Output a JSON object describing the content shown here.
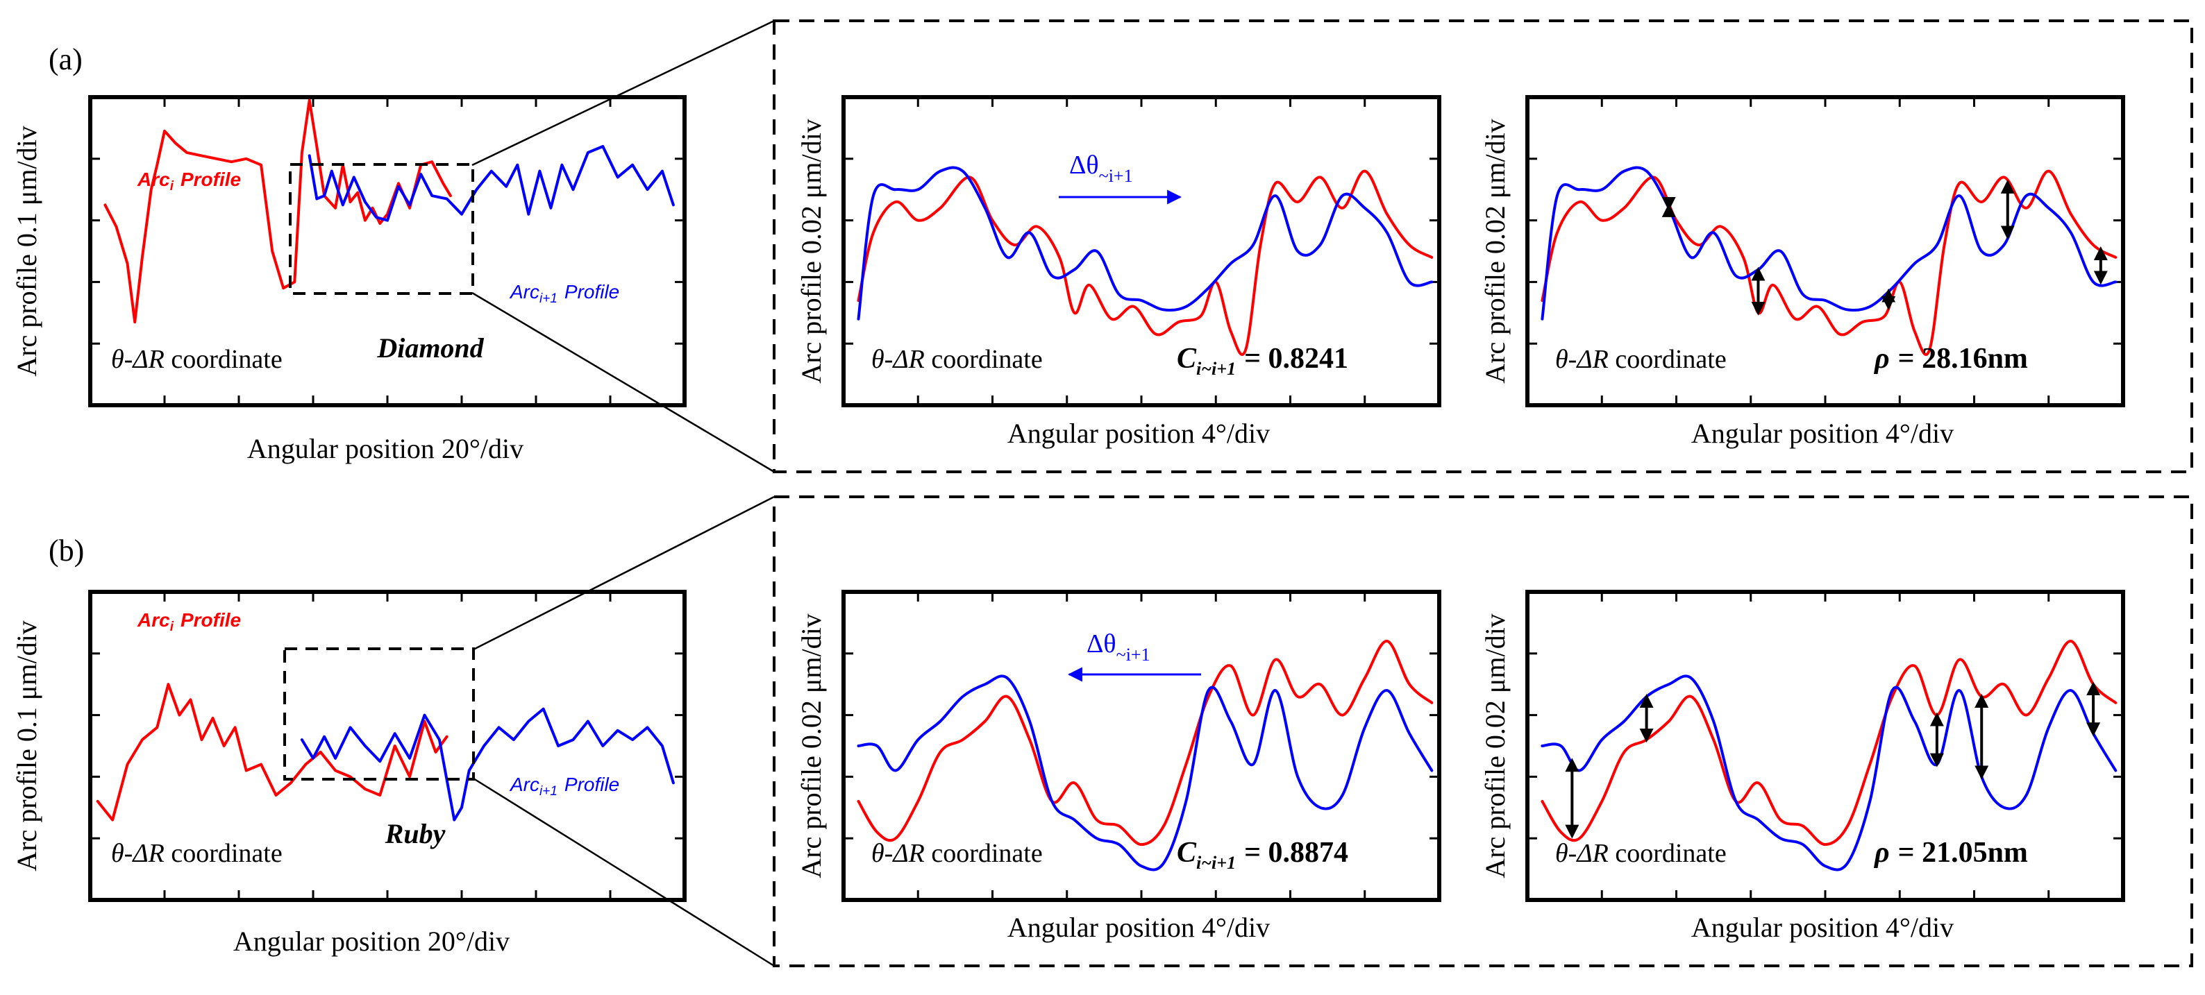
{
  "figure": {
    "panel_a_label": "(a)",
    "panel_b_label": "(b)"
  },
  "colors": {
    "arc_i": "#ff0000",
    "arc_i1": "#0000ff",
    "frame": "#000000"
  },
  "panels": {
    "a": {
      "overview": {
        "ylabel": "Arc profile 0.1 μm/div",
        "xlabel": "Angular position 20°/div",
        "coord": "θ-ΔR coordinate",
        "material": "Diamond",
        "arc_i_label": "Arc",
        "arc_i_sub": "i",
        "arc_i_suffix": "Profile",
        "arc_i1_label": "Arc",
        "arc_i1_sub": "i+1",
        "arc_i1_suffix": "Profile"
      },
      "zoom_left": {
        "ylabel": "Arc profile 0.02 μm/div",
        "xlabel": "Angular position 4°/div",
        "coord": "θ-ΔR coordinate",
        "shift_label": "Δθ",
        "shift_sub": "~i+1",
        "stat_symbol": "C",
        "stat_sub": "i~i+1",
        "stat_value": "= 0.8241"
      },
      "zoom_right": {
        "ylabel": "Arc profile 0.02 μm/div",
        "xlabel": "Angular position 4°/div",
        "coord": "θ-ΔR coordinate",
        "stat_symbol": "ρ",
        "stat_value": "= 28.16nm"
      }
    },
    "b": {
      "overview": {
        "ylabel": "Arc profile 0.1 μm/div",
        "xlabel": "Angular position 20°/div",
        "coord": "θ-ΔR coordinate",
        "material": "Ruby",
        "arc_i_label": "Arc",
        "arc_i_sub": "i",
        "arc_i_suffix": "Profile",
        "arc_i1_label": "Arc",
        "arc_i1_sub": "i+1",
        "arc_i1_suffix": "Profile"
      },
      "zoom_left": {
        "ylabel": "Arc profile 0.02 μm/div",
        "xlabel": "Angular position 4°/div",
        "coord": "θ-ΔR coordinate",
        "shift_label": "Δθ",
        "shift_sub": "~i+1",
        "stat_symbol": "C",
        "stat_sub": "i~i+1",
        "stat_value": "= 0.8874"
      },
      "zoom_right": {
        "ylabel": "Arc profile 0.02 μm/div",
        "xlabel": "Angular position 4°/div",
        "coord": "θ-ΔR coordinate",
        "stat_symbol": "ρ",
        "stat_value": "= 21.05nm"
      }
    }
  },
  "chart_data": [
    {
      "type": "line",
      "id": "a_overview",
      "title": "Diamond",
      "xlabel": "Angular position 20°/div",
      "ylabel": "Arc profile 0.1 μm/div",
      "xlim": [
        0,
        8
      ],
      "ylim": [
        0,
        5
      ],
      "series": [
        {
          "name": "Arc_i Profile",
          "color": "#ff0000",
          "x": [
            0.2,
            0.35,
            0.5,
            0.6,
            0.7,
            0.82,
            0.9,
            1.0,
            1.15,
            1.3,
            1.5,
            1.7,
            1.9,
            2.1,
            2.3,
            2.45,
            2.6,
            2.75,
            2.85,
            2.95,
            3.05,
            3.15,
            3.3,
            3.4,
            3.5,
            3.6,
            3.7,
            3.8,
            3.9,
            4.0,
            4.15,
            4.3,
            4.45,
            4.6,
            4.75,
            4.85
          ],
          "y": [
            3.25,
            2.9,
            2.3,
            1.35,
            2.4,
            3.5,
            3.9,
            4.45,
            4.25,
            4.1,
            4.05,
            4.0,
            3.95,
            4.0,
            3.9,
            2.5,
            1.9,
            2.0,
            4.1,
            4.95,
            4.2,
            3.4,
            3.2,
            3.9,
            3.3,
            3.45,
            3.0,
            3.2,
            2.95,
            3.1,
            3.6,
            3.2,
            3.9,
            3.95,
            3.6,
            3.4
          ]
        },
        {
          "name": "Arc_i+1 Profile",
          "color": "#0000ff",
          "x": [
            2.95,
            3.05,
            3.15,
            3.25,
            3.4,
            3.55,
            3.7,
            3.85,
            4.0,
            4.15,
            4.3,
            4.45,
            4.6,
            4.8,
            5.0,
            5.2,
            5.4,
            5.6,
            5.75,
            5.9,
            6.05,
            6.2,
            6.35,
            6.5,
            6.7,
            6.9,
            7.1,
            7.3,
            7.5,
            7.7,
            7.85
          ],
          "y": [
            4.05,
            3.35,
            3.4,
            3.8,
            3.25,
            3.7,
            3.3,
            3.05,
            3.0,
            3.55,
            3.25,
            3.75,
            3.4,
            3.35,
            3.1,
            3.5,
            3.8,
            3.55,
            3.9,
            3.1,
            3.8,
            3.2,
            3.9,
            3.5,
            4.1,
            4.2,
            3.7,
            3.9,
            3.5,
            3.8,
            3.25
          ]
        }
      ],
      "annotations": [
        "Arc_i Profile",
        "Arc_i+1 Profile",
        "θ-ΔR coordinate",
        "Diamond"
      ]
    },
    {
      "type": "line",
      "id": "a_zoom_left",
      "xlabel": "Angular position 4°/div",
      "ylabel": "Arc profile 0.02 μm/div",
      "xlim": [
        0,
        8
      ],
      "ylim": [
        0,
        5
      ],
      "series": [
        {
          "name": "Arc_i",
          "color": "#ff0000",
          "x": [
            0.2,
            0.4,
            0.7,
            1.0,
            1.3,
            1.7,
            2.0,
            2.3,
            2.6,
            2.9,
            3.1,
            3.3,
            3.6,
            3.9,
            4.2,
            4.5,
            4.8,
            5.0,
            5.2,
            5.4,
            5.6,
            5.8,
            6.1,
            6.4,
            6.7,
            7.0,
            7.3,
            7.6,
            7.9
          ],
          "y": [
            1.7,
            2.8,
            3.3,
            3.0,
            3.2,
            3.7,
            3.0,
            2.6,
            2.9,
            2.4,
            1.5,
            1.95,
            1.4,
            1.6,
            1.15,
            1.35,
            1.45,
            2.0,
            1.2,
            0.9,
            2.6,
            3.6,
            3.3,
            3.7,
            3.2,
            3.8,
            3.1,
            2.6,
            2.4
          ]
        },
        {
          "name": "Arc_i+1",
          "color": "#0000ff",
          "x": [
            0.2,
            0.4,
            0.7,
            1.0,
            1.3,
            1.6,
            1.9,
            2.2,
            2.5,
            2.8,
            3.1,
            3.4,
            3.7,
            4.0,
            4.3,
            4.6,
            4.9,
            5.2,
            5.5,
            5.8,
            6.1,
            6.4,
            6.7,
            7.0,
            7.3,
            7.6,
            7.9
          ],
          "y": [
            1.4,
            3.4,
            3.5,
            3.5,
            3.8,
            3.8,
            3.2,
            2.4,
            2.8,
            2.1,
            2.2,
            2.5,
            1.8,
            1.7,
            1.55,
            1.6,
            1.9,
            2.3,
            2.6,
            3.4,
            2.5,
            2.6,
            3.4,
            3.2,
            2.8,
            2.0,
            2.0
          ]
        }
      ],
      "annotations": [
        "Δθ ~i+1",
        "θ-ΔR coordinate",
        "C i~i+1 = 0.8241"
      ]
    },
    {
      "type": "line",
      "id": "a_zoom_right",
      "xlabel": "Angular position 4°/div",
      "ylabel": "Arc profile 0.02 μm/div",
      "xlim": [
        0,
        8
      ],
      "ylim": [
        0,
        5
      ],
      "series": [
        {
          "name": "Arc_i",
          "color": "#ff0000",
          "x": [
            0.2,
            0.4,
            0.7,
            1.0,
            1.3,
            1.7,
            2.0,
            2.3,
            2.6,
            2.9,
            3.1,
            3.3,
            3.6,
            3.9,
            4.2,
            4.5,
            4.8,
            5.0,
            5.2,
            5.4,
            5.6,
            5.8,
            6.1,
            6.4,
            6.7,
            7.0,
            7.3,
            7.6,
            7.9
          ],
          "y": [
            1.7,
            2.8,
            3.3,
            3.0,
            3.2,
            3.7,
            3.0,
            2.6,
            2.9,
            2.4,
            1.5,
            1.95,
            1.4,
            1.6,
            1.15,
            1.35,
            1.45,
            2.0,
            1.2,
            0.9,
            2.6,
            3.6,
            3.3,
            3.7,
            3.2,
            3.8,
            3.1,
            2.6,
            2.4
          ]
        },
        {
          "name": "Arc_i+1",
          "color": "#0000ff",
          "x": [
            0.2,
            0.4,
            0.7,
            1.0,
            1.3,
            1.6,
            1.9,
            2.2,
            2.5,
            2.8,
            3.1,
            3.4,
            3.7,
            4.0,
            4.3,
            4.6,
            4.9,
            5.2,
            5.5,
            5.8,
            6.1,
            6.4,
            6.7,
            7.0,
            7.3,
            7.6,
            7.9
          ],
          "y": [
            1.4,
            3.4,
            3.5,
            3.5,
            3.8,
            3.8,
            3.2,
            2.4,
            2.8,
            2.1,
            2.2,
            2.5,
            1.8,
            1.7,
            1.55,
            1.6,
            1.9,
            2.3,
            2.6,
            3.4,
            2.5,
            2.6,
            3.4,
            3.2,
            2.8,
            2.0,
            2.0
          ]
        }
      ],
      "deviation_markers_x": [
        1.9,
        3.1,
        4.85,
        6.45,
        7.7
      ],
      "annotations": [
        "θ-ΔR coordinate",
        "ρ = 28.16nm"
      ]
    },
    {
      "type": "line",
      "id": "b_overview",
      "title": "Ruby",
      "xlabel": "Angular position 20°/div",
      "ylabel": "Arc profile 0.1 μm/div",
      "xlim": [
        0,
        8
      ],
      "ylim": [
        0,
        5
      ],
      "series": [
        {
          "name": "Arc_i Profile",
          "color": "#ff0000",
          "x": [
            0.1,
            0.3,
            0.5,
            0.7,
            0.9,
            1.05,
            1.2,
            1.35,
            1.5,
            1.65,
            1.8,
            1.95,
            2.1,
            2.3,
            2.5,
            2.7,
            2.9,
            3.1,
            3.3,
            3.5,
            3.7,
            3.9,
            4.1,
            4.3,
            4.5,
            4.65,
            4.8
          ],
          "y": [
            1.6,
            1.3,
            2.2,
            2.6,
            2.8,
            3.5,
            3.0,
            3.25,
            2.6,
            2.95,
            2.5,
            2.8,
            2.1,
            2.2,
            1.7,
            1.9,
            2.2,
            2.4,
            2.1,
            2.0,
            1.8,
            1.7,
            2.5,
            2.0,
            2.9,
            2.4,
            2.65
          ]
        },
        {
          "name": "Arc_i+1 Profile",
          "color": "#0000ff",
          "x": [
            2.85,
            3.0,
            3.15,
            3.3,
            3.5,
            3.7,
            3.9,
            4.1,
            4.3,
            4.5,
            4.7,
            4.9,
            5.0,
            5.1,
            5.3,
            5.5,
            5.7,
            5.9,
            6.1,
            6.3,
            6.5,
            6.7,
            6.9,
            7.1,
            7.3,
            7.5,
            7.7,
            7.85
          ],
          "y": [
            2.6,
            2.3,
            2.65,
            2.3,
            2.8,
            2.5,
            2.25,
            2.7,
            2.3,
            3.0,
            2.6,
            1.3,
            1.5,
            2.1,
            2.5,
            2.8,
            2.6,
            2.9,
            3.1,
            2.5,
            2.6,
            2.9,
            2.5,
            2.75,
            2.6,
            2.8,
            2.5,
            1.9
          ]
        }
      ],
      "annotations": [
        "Arc_i Profile",
        "Arc_i+1 Profile",
        "θ-ΔR coordinate",
        "Ruby"
      ]
    },
    {
      "type": "line",
      "id": "b_zoom_left",
      "xlabel": "Angular position 4°/div",
      "ylabel": "Arc profile 0.02 μm/div",
      "xlim": [
        0,
        8
      ],
      "ylim": [
        0,
        5
      ],
      "series": [
        {
          "name": "Arc_i",
          "color": "#ff0000",
          "x": [
            0.2,
            0.45,
            0.7,
            1.0,
            1.3,
            1.6,
            1.9,
            2.2,
            2.5,
            2.8,
            3.1,
            3.4,
            3.7,
            4.0,
            4.3,
            4.6,
            4.9,
            5.2,
            5.5,
            5.8,
            6.1,
            6.4,
            6.7,
            7.0,
            7.3,
            7.6,
            7.9
          ],
          "y": [
            1.6,
            1.1,
            1.0,
            1.6,
            2.4,
            2.6,
            2.9,
            3.3,
            2.6,
            1.6,
            1.9,
            1.3,
            1.2,
            0.9,
            1.2,
            2.2,
            3.3,
            3.8,
            3.0,
            3.9,
            3.3,
            3.5,
            3.0,
            3.6,
            4.2,
            3.5,
            3.2
          ]
        },
        {
          "name": "Arc_i+1",
          "color": "#0000ff",
          "x": [
            0.2,
            0.45,
            0.7,
            1.0,
            1.3,
            1.6,
            1.9,
            2.2,
            2.5,
            2.8,
            3.1,
            3.4,
            3.7,
            4.0,
            4.3,
            4.6,
            4.9,
            5.2,
            5.5,
            5.8,
            6.1,
            6.4,
            6.7,
            7.0,
            7.3,
            7.6,
            7.9
          ],
          "y": [
            2.5,
            2.5,
            2.1,
            2.6,
            2.9,
            3.3,
            3.5,
            3.6,
            2.9,
            1.6,
            1.3,
            1.0,
            0.9,
            0.55,
            0.6,
            1.6,
            3.4,
            2.9,
            2.2,
            3.4,
            2.0,
            1.5,
            1.7,
            2.8,
            3.4,
            2.7,
            2.1
          ]
        }
      ],
      "annotations": [
        "Δθ ~i+1",
        "θ-ΔR coordinate",
        "C i~i+1 = 0.8874"
      ]
    },
    {
      "type": "line",
      "id": "b_zoom_right",
      "xlabel": "Angular position 4°/div",
      "ylabel": "Arc profile 0.02 μm/div",
      "xlim": [
        0,
        8
      ],
      "ylim": [
        0,
        5
      ],
      "series": [
        {
          "name": "Arc_i",
          "color": "#ff0000",
          "x": [
            0.2,
            0.45,
            0.7,
            1.0,
            1.3,
            1.6,
            1.9,
            2.2,
            2.5,
            2.8,
            3.1,
            3.4,
            3.7,
            4.0,
            4.3,
            4.6,
            4.9,
            5.2,
            5.5,
            5.8,
            6.1,
            6.4,
            6.7,
            7.0,
            7.3,
            7.6,
            7.9
          ],
          "y": [
            1.6,
            1.1,
            1.0,
            1.6,
            2.4,
            2.6,
            2.9,
            3.3,
            2.6,
            1.6,
            1.9,
            1.3,
            1.2,
            0.9,
            1.2,
            2.2,
            3.3,
            3.8,
            3.0,
            3.9,
            3.3,
            3.5,
            3.0,
            3.6,
            4.2,
            3.5,
            3.2
          ]
        },
        {
          "name": "Arc_i+1",
          "color": "#0000ff",
          "x": [
            0.2,
            0.45,
            0.7,
            1.0,
            1.3,
            1.6,
            1.9,
            2.2,
            2.5,
            2.8,
            3.1,
            3.4,
            3.7,
            4.0,
            4.3,
            4.6,
            4.9,
            5.2,
            5.5,
            5.8,
            6.1,
            6.4,
            6.7,
            7.0,
            7.3,
            7.6,
            7.9
          ],
          "y": [
            2.5,
            2.5,
            2.1,
            2.6,
            2.9,
            3.3,
            3.5,
            3.6,
            2.9,
            1.6,
            1.3,
            1.0,
            0.9,
            0.55,
            0.6,
            1.6,
            3.4,
            2.9,
            2.2,
            3.4,
            2.0,
            1.5,
            1.7,
            2.8,
            3.4,
            2.7,
            2.1
          ]
        }
      ],
      "deviation_markers_x": [
        0.6,
        1.6,
        5.5,
        6.1,
        7.6
      ],
      "annotations": [
        "θ-ΔR coordinate",
        "ρ = 21.05nm"
      ]
    }
  ]
}
